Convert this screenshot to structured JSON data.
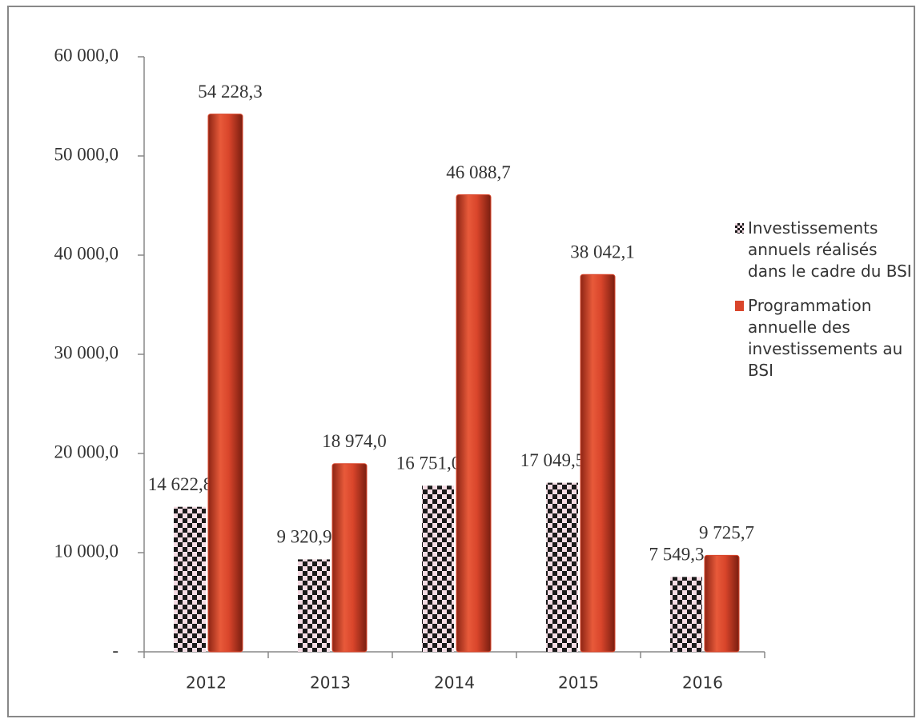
{
  "chart_data": {
    "type": "bar",
    "categories": [
      "2012",
      "2013",
      "2014",
      "2015",
      "2016"
    ],
    "series": [
      {
        "name": "Investissements annuels réalisés dans le cadre du BSI",
        "color": "#1a1a1a",
        "values": [
          14622.8,
          9320.9,
          16751.0,
          17049.5,
          7549.3
        ],
        "value_labels": [
          "14 622,8",
          "9 320,9",
          "16 751,0",
          "17 049,5",
          "7 549,3"
        ]
      },
      {
        "name": "Programmation annuelle des investissements au BSI",
        "color": "#d9452b",
        "values": [
          54228.3,
          18974.0,
          46088.7,
          38042.1,
          9725.7
        ],
        "value_labels": [
          "54 228,3",
          "18 974,0",
          "46 088,7",
          "38 042,1",
          "9 725,7"
        ]
      }
    ],
    "ylim": [
      0,
      60000
    ],
    "yticks": [
      {
        "value": 0,
        "label": "-"
      },
      {
        "value": 10000,
        "label": "10 000,0"
      },
      {
        "value": 20000,
        "label": "20 000,0"
      },
      {
        "value": 30000,
        "label": "30 000,0"
      },
      {
        "value": 40000,
        "label": "40 000,0"
      },
      {
        "value": 50000,
        "label": "50 000,0"
      },
      {
        "value": 60000,
        "label": "60 000,0"
      }
    ],
    "legend": "right"
  }
}
